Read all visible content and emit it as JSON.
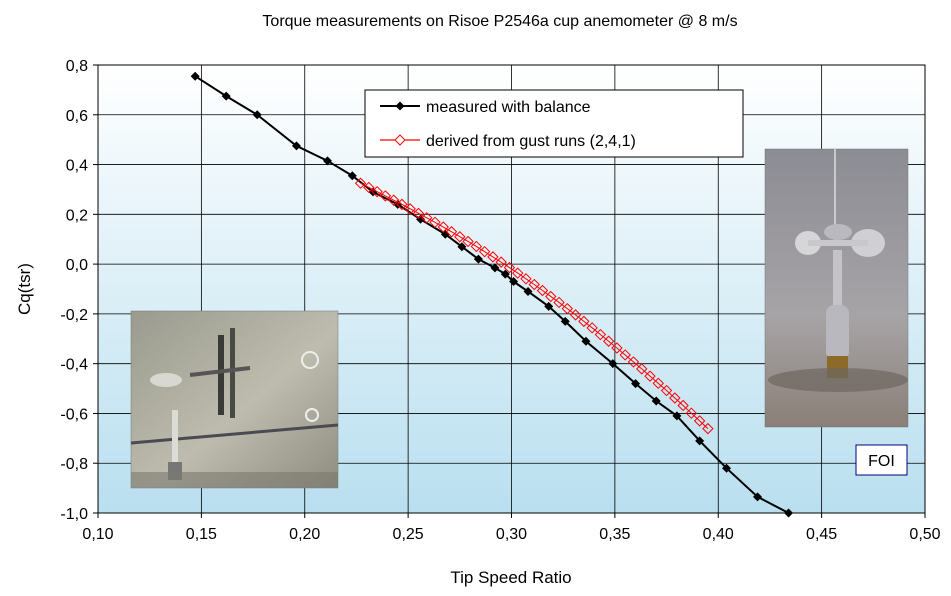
{
  "chart_data": {
    "type": "line",
    "title": "Torque measurements on Risoe P2546a cup anemometer @ 8 m/s",
    "xlabel": "Tip Speed Ratio",
    "ylabel": "Cq(tsr)",
    "xlim": [
      0.1,
      0.5
    ],
    "ylim": [
      -1.0,
      0.8
    ],
    "xticks": [
      "0,10",
      "0,15",
      "0,20",
      "0,25",
      "0,30",
      "0,35",
      "0,40",
      "0,45",
      "0,50"
    ],
    "yticks": [
      "0,8",
      "0,6",
      "0,4",
      "0,2",
      "0,0",
      "-0,2",
      "-0,4",
      "-0,6",
      "-0,8",
      "-1,0"
    ],
    "grid": true,
    "legend_position": "top-center",
    "series": [
      {
        "name": "measured with balance",
        "color": "#000000",
        "marker": "diamond-filled",
        "x": [
          0.147,
          0.162,
          0.177,
          0.196,
          0.211,
          0.223,
          0.233,
          0.245,
          0.256,
          0.268,
          0.276,
          0.284,
          0.292,
          0.297,
          0.301,
          0.308,
          0.318,
          0.326,
          0.336,
          0.349,
          0.36,
          0.37,
          0.38,
          0.391,
          0.404,
          0.419,
          0.434
        ],
        "y": [
          0.755,
          0.675,
          0.6,
          0.475,
          0.415,
          0.355,
          0.29,
          0.24,
          0.18,
          0.12,
          0.07,
          0.02,
          -0.015,
          -0.04,
          -0.07,
          -0.11,
          -0.17,
          -0.23,
          -0.31,
          -0.4,
          -0.48,
          -0.55,
          -0.61,
          -0.71,
          -0.82,
          -0.935,
          -1.0
        ]
      },
      {
        "name": "derived from gust runs (2,4,1)",
        "color": "#ff0000",
        "marker": "diamond-open",
        "x": [
          0.227,
          0.231,
          0.235,
          0.239,
          0.243,
          0.247,
          0.251,
          0.255,
          0.259,
          0.263,
          0.267,
          0.271,
          0.275,
          0.279,
          0.283,
          0.287,
          0.291,
          0.295,
          0.299,
          0.303,
          0.307,
          0.311,
          0.315,
          0.319,
          0.323,
          0.327,
          0.331,
          0.335,
          0.339,
          0.343,
          0.347,
          0.351,
          0.355,
          0.359,
          0.363,
          0.367,
          0.371,
          0.375,
          0.379,
          0.383,
          0.387,
          0.391,
          0.395
        ],
        "y": [
          0.325,
          0.308,
          0.291,
          0.274,
          0.257,
          0.24,
          0.222,
          0.204,
          0.186,
          0.168,
          0.149,
          0.13,
          0.11,
          0.091,
          0.071,
          0.05,
          0.029,
          0.008,
          -0.014,
          -0.036,
          -0.059,
          -0.082,
          -0.106,
          -0.13,
          -0.154,
          -0.179,
          -0.204,
          -0.23,
          -0.256,
          -0.283,
          -0.31,
          -0.337,
          -0.365,
          -0.393,
          -0.421,
          -0.45,
          -0.479,
          -0.508,
          -0.538,
          -0.568,
          -0.599,
          -0.63,
          -0.661
        ]
      }
    ],
    "annotation": "FOI"
  },
  "colors": {
    "plot_top": "#ffffff",
    "plot_bottom": "#b9dfef",
    "grid": "#000000",
    "foi_border": "#000080",
    "foi_text": "#000080"
  }
}
